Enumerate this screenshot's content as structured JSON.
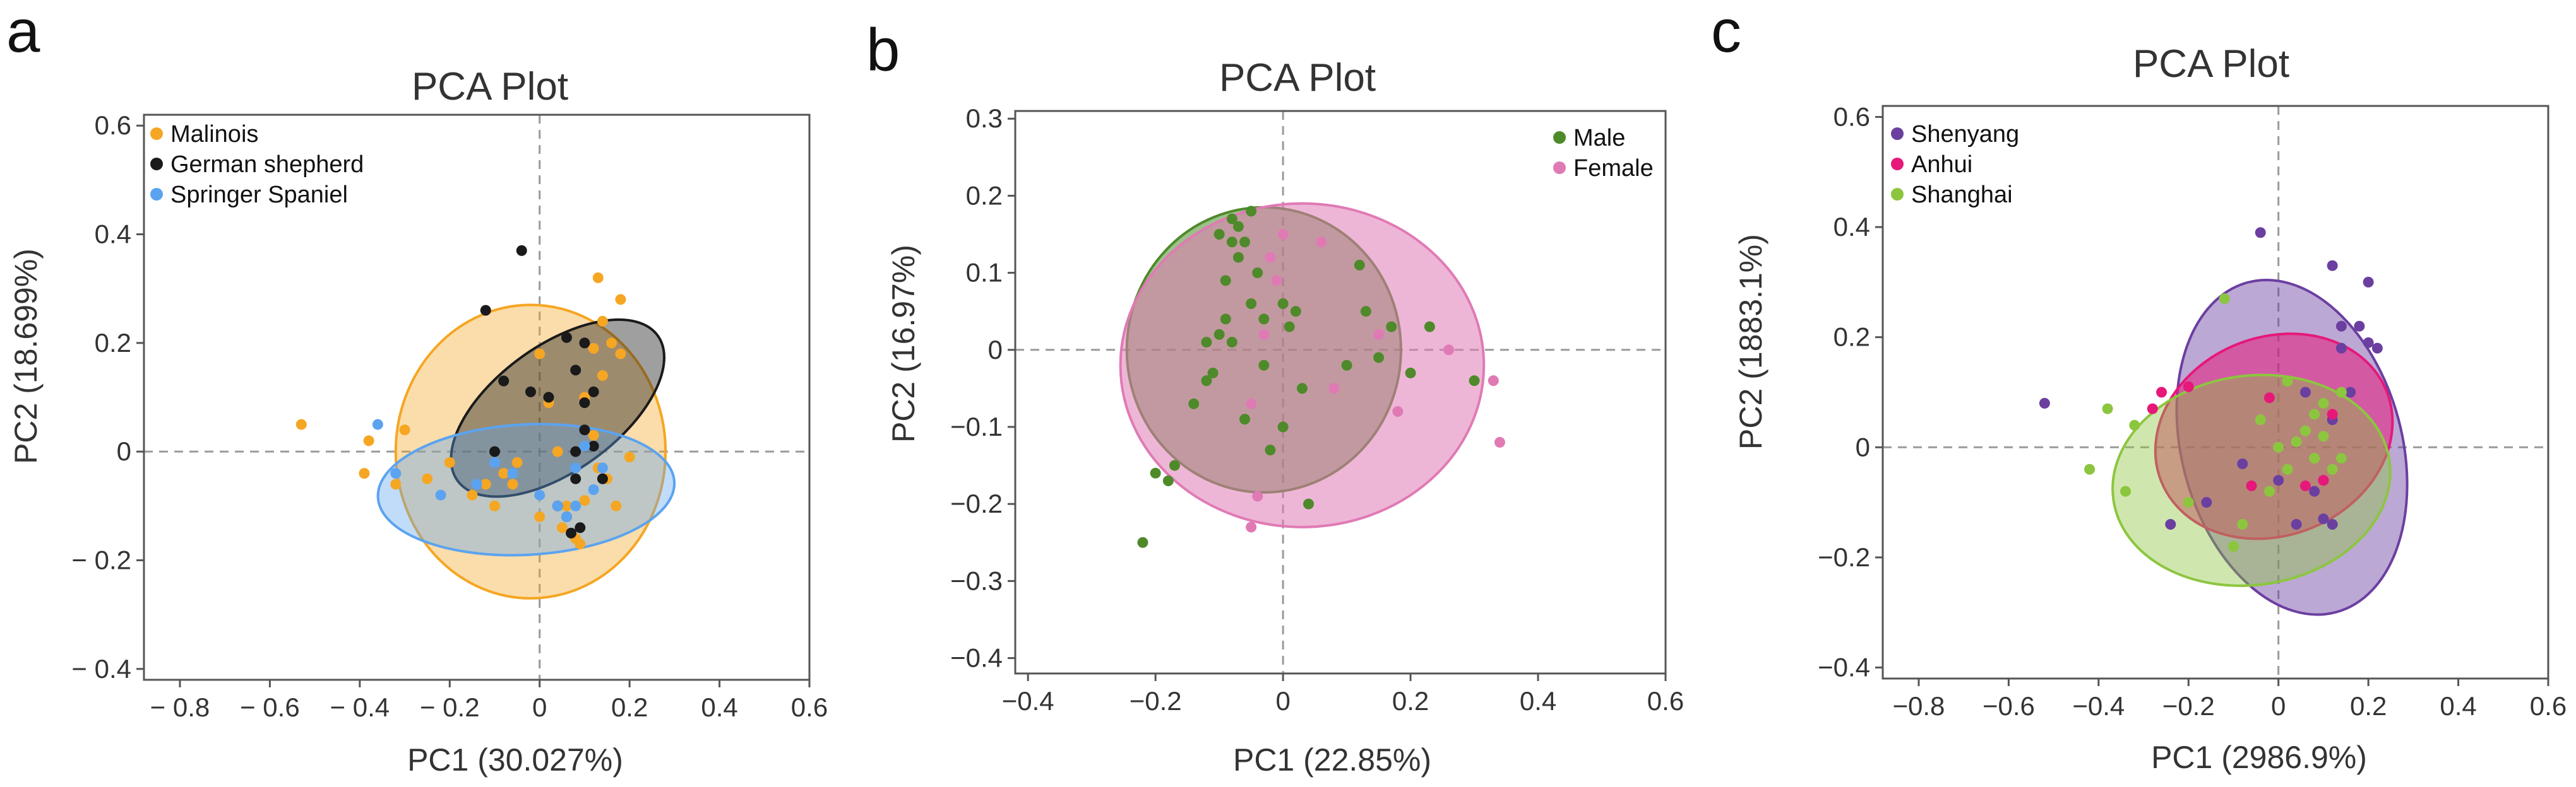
{
  "chart_data": [
    {
      "type": "scatter",
      "panel": "a",
      "title": "PCA  Plot",
      "xlabel": "PC1  (30.027%)",
      "ylabel": "PC2  (18.699%)",
      "xlim": [
        -0.88,
        0.6
      ],
      "ylim": [
        -0.42,
        0.62
      ],
      "xticks": [
        -0.8,
        -0.6,
        -0.4,
        -0.2,
        0,
        0.2,
        0.4,
        0.6
      ],
      "xtick_labels": [
        "− 0.8",
        "− 0.6",
        "− 0.4",
        "− 0.2",
        "0",
        "0.2",
        "0.4",
        "0.6"
      ],
      "yticks": [
        -0.4,
        -0.2,
        0,
        0.2,
        0.4,
        0.6
      ],
      "ytick_labels": [
        "− 0.4",
        "− 0.2",
        "0",
        "0.2",
        "0.4",
        "0.6"
      ],
      "legend_position": "top-left",
      "series": [
        {
          "name": "Malinois",
          "color": "#f5a623",
          "fill_opacity": 0.38,
          "ellipse": {
            "cx": -0.02,
            "cy": 0.0,
            "rx": 0.3,
            "ry": 0.27,
            "angle": 0
          },
          "points": [
            [
              -0.53,
              0.05
            ],
            [
              -0.39,
              -0.04
            ],
            [
              -0.38,
              0.02
            ],
            [
              -0.3,
              0.04
            ],
            [
              -0.2,
              -0.02
            ],
            [
              -0.15,
              -0.08
            ],
            [
              -0.12,
              -0.06
            ],
            [
              -0.08,
              -0.04
            ],
            [
              -0.06,
              -0.06
            ],
            [
              0.0,
              0.18
            ],
            [
              0.02,
              0.09
            ],
            [
              0.04,
              0.0
            ],
            [
              0.05,
              -0.14
            ],
            [
              0.06,
              -0.1
            ],
            [
              0.08,
              -0.16
            ],
            [
              0.09,
              -0.17
            ],
            [
              0.1,
              -0.09
            ],
            [
              0.12,
              0.03
            ],
            [
              0.12,
              0.19
            ],
            [
              0.13,
              0.32
            ],
            [
              0.14,
              0.24
            ],
            [
              0.15,
              -0.05
            ],
            [
              0.16,
              0.2
            ],
            [
              0.18,
              0.28
            ],
            [
              0.18,
              0.18
            ],
            [
              0.2,
              -0.01
            ],
            [
              0.13,
              -0.03
            ],
            [
              0.1,
              0.1
            ],
            [
              -0.25,
              -0.05
            ],
            [
              -0.1,
              -0.1
            ],
            [
              0.0,
              -0.12
            ],
            [
              -0.05,
              -0.02
            ],
            [
              0.14,
              0.14
            ],
            [
              0.17,
              -0.1
            ],
            [
              -0.32,
              -0.06
            ]
          ]
        },
        {
          "name": "German shepherd",
          "color": "#1a1a1a",
          "fill_opacity": 0.42,
          "ellipse": {
            "cx": 0.04,
            "cy": 0.08,
            "rx": 0.275,
            "ry": 0.115,
            "angle": -36
          },
          "points": [
            [
              -0.04,
              0.37
            ],
            [
              -0.12,
              0.26
            ],
            [
              -0.1,
              0.0
            ],
            [
              -0.08,
              0.13
            ],
            [
              -0.02,
              0.11
            ],
            [
              0.02,
              0.1
            ],
            [
              0.06,
              0.21
            ],
            [
              0.08,
              0.15
            ],
            [
              0.1,
              0.09
            ],
            [
              0.1,
              0.04
            ],
            [
              0.12,
              0.01
            ],
            [
              0.08,
              -0.05
            ],
            [
              0.06,
              -0.12
            ],
            [
              0.07,
              -0.15
            ],
            [
              0.09,
              -0.14
            ],
            [
              0.12,
              0.11
            ],
            [
              0.1,
              0.2
            ],
            [
              0.14,
              -0.05
            ],
            [
              0.04,
              -0.1
            ],
            [
              0.08,
              0.0
            ]
          ]
        },
        {
          "name": "Springer Spaniel",
          "color": "#5ba3f0",
          "fill_opacity": 0.38,
          "ellipse": {
            "cx": -0.03,
            "cy": -0.07,
            "rx": 0.33,
            "ry": 0.12,
            "angle": -3
          },
          "points": [
            [
              -0.36,
              0.05
            ],
            [
              -0.32,
              -0.04
            ],
            [
              -0.22,
              -0.08
            ],
            [
              -0.14,
              -0.06
            ],
            [
              -0.06,
              -0.04
            ],
            [
              0.0,
              -0.08
            ],
            [
              0.04,
              -0.1
            ],
            [
              0.08,
              -0.1
            ],
            [
              0.08,
              -0.03
            ],
            [
              0.1,
              0.01
            ],
            [
              0.12,
              -0.07
            ],
            [
              0.14,
              -0.03
            ],
            [
              -0.1,
              -0.02
            ],
            [
              0.06,
              -0.12
            ]
          ]
        }
      ]
    },
    {
      "type": "scatter",
      "panel": "b",
      "title": "PCA  Plot",
      "xlabel": "PC1  (22.85%)",
      "ylabel": "PC2  (16.97%)",
      "xlim": [
        -0.42,
        0.6
      ],
      "ylim": [
        -0.42,
        0.31
      ],
      "xticks": [
        -0.4,
        -0.2,
        0,
        0.2,
        0.4,
        0.6
      ],
      "xtick_labels": [
        "−0.4",
        "−0.2",
        "0",
        "0.2",
        "0.4",
        "0.6"
      ],
      "yticks": [
        -0.4,
        -0.3,
        -0.2,
        -0.1,
        0,
        0.1,
        0.2,
        0.3
      ],
      "ytick_labels": [
        "−0.4",
        "−0.3",
        "−0.2",
        "−0.1",
        "0",
        "0.1",
        "0.2",
        "0.3"
      ],
      "legend_position": "top-right",
      "series": [
        {
          "name": "Male",
          "color": "#4e8a2a",
          "fill_opacity": 0.55,
          "ellipse": {
            "cx": -0.03,
            "cy": 0.0,
            "rx": 0.215,
            "ry": 0.185,
            "angle": 0
          },
          "points": [
            [
              -0.22,
              -0.25
            ],
            [
              -0.2,
              -0.16
            ],
            [
              -0.18,
              -0.17
            ],
            [
              -0.17,
              -0.15
            ],
            [
              -0.14,
              -0.07
            ],
            [
              -0.12,
              -0.04
            ],
            [
              -0.12,
              0.01
            ],
            [
              -0.11,
              -0.03
            ],
            [
              -0.1,
              0.02
            ],
            [
              -0.09,
              0.09
            ],
            [
              -0.09,
              0.04
            ],
            [
              -0.08,
              0.14
            ],
            [
              -0.08,
              0.01
            ],
            [
              -0.07,
              0.16
            ],
            [
              -0.07,
              0.12
            ],
            [
              -0.06,
              0.14
            ],
            [
              -0.06,
              -0.09
            ],
            [
              -0.05,
              0.06
            ],
            [
              -0.04,
              0.1
            ],
            [
              -0.03,
              -0.02
            ],
            [
              -0.02,
              -0.13
            ],
            [
              0.0,
              -0.1
            ],
            [
              0.0,
              0.06
            ],
            [
              0.01,
              0.03
            ],
            [
              0.02,
              0.05
            ],
            [
              0.03,
              -0.05
            ],
            [
              0.04,
              -0.2
            ],
            [
              -0.03,
              0.04
            ],
            [
              0.12,
              0.11
            ],
            [
              0.13,
              0.05
            ],
            [
              0.15,
              -0.01
            ],
            [
              0.17,
              0.03
            ],
            [
              0.2,
              -0.03
            ],
            [
              0.23,
              0.03
            ],
            [
              0.3,
              -0.04
            ],
            [
              0.1,
              -0.02
            ],
            [
              -0.1,
              0.15
            ],
            [
              -0.05,
              0.18
            ],
            [
              -0.08,
              0.17
            ]
          ]
        },
        {
          "name": "Female",
          "color": "#e07ab5",
          "fill_opacity": 0.55,
          "ellipse": {
            "cx": 0.03,
            "cy": -0.02,
            "rx": 0.285,
            "ry": 0.21,
            "angle": 0
          },
          "points": [
            [
              -0.05,
              -0.23
            ],
            [
              -0.04,
              -0.19
            ],
            [
              -0.05,
              -0.07
            ],
            [
              -0.03,
              0.02
            ],
            [
              -0.02,
              0.12
            ],
            [
              -0.01,
              0.09
            ],
            [
              0.0,
              0.15
            ],
            [
              0.15,
              0.02
            ],
            [
              0.18,
              -0.08
            ],
            [
              0.26,
              0.0
            ],
            [
              0.33,
              -0.04
            ],
            [
              0.34,
              -0.12
            ],
            [
              0.06,
              0.14
            ],
            [
              0.08,
              -0.05
            ]
          ]
        }
      ]
    },
    {
      "type": "scatter",
      "panel": "c",
      "title": "PCA  Plot",
      "xlabel": "PC1  (2986.9%)",
      "ylabel": "PC2  (1883.1%)",
      "xlim": [
        -0.88,
        0.6
      ],
      "ylim": [
        -0.42,
        0.62
      ],
      "xticks": [
        -0.8,
        -0.6,
        -0.4,
        -0.2,
        0,
        0.2,
        0.4,
        0.6
      ],
      "xtick_labels": [
        "−0.8",
        "−0.6",
        "−0.4",
        "−0.2",
        "0",
        "0.2",
        "0.4",
        "0.6"
      ],
      "yticks": [
        -0.4,
        -0.2,
        0,
        0.2,
        0.4,
        0.6
      ],
      "ytick_labels": [
        "−0.4",
        "−0.2",
        "0",
        "0.2",
        "0.4",
        "0.6"
      ],
      "legend_position": "top-left",
      "series": [
        {
          "name": "Shenyang",
          "color": "#6b3fa0",
          "fill_opacity": 0.45,
          "ellipse": {
            "cx": 0.03,
            "cy": 0.0,
            "rx": 0.245,
            "ry": 0.31,
            "angle": -15
          },
          "points": [
            [
              -0.52,
              0.08
            ],
            [
              -0.04,
              0.39
            ],
            [
              0.12,
              0.33
            ],
            [
              0.2,
              0.3
            ],
            [
              0.2,
              0.19
            ],
            [
              0.18,
              0.22
            ],
            [
              0.14,
              0.18
            ],
            [
              0.16,
              0.1
            ],
            [
              0.12,
              0.05
            ],
            [
              0.14,
              -0.02
            ],
            [
              0.08,
              -0.08
            ],
            [
              0.1,
              -0.13
            ],
            [
              0.12,
              -0.14
            ],
            [
              0.0,
              -0.06
            ],
            [
              -0.08,
              -0.03
            ],
            [
              -0.24,
              -0.14
            ],
            [
              -0.16,
              -0.1
            ],
            [
              0.04,
              -0.14
            ],
            [
              0.06,
              0.1
            ],
            [
              0.1,
              -0.06
            ],
            [
              0.14,
              0.22
            ],
            [
              0.22,
              0.18
            ]
          ]
        },
        {
          "name": "Anhui",
          "color": "#e6187a",
          "fill_opacity": 0.55,
          "ellipse": {
            "cx": -0.01,
            "cy": 0.02,
            "rx": 0.27,
            "ry": 0.18,
            "angle": -22
          },
          "points": [
            [
              -0.28,
              0.07
            ],
            [
              -0.26,
              0.1
            ],
            [
              -0.2,
              0.11
            ],
            [
              -0.02,
              0.09
            ],
            [
              0.06,
              -0.07
            ],
            [
              0.1,
              -0.06
            ],
            [
              0.12,
              0.06
            ],
            [
              -0.06,
              -0.07
            ]
          ]
        },
        {
          "name": "Shanghai",
          "color": "#8cc63f",
          "fill_opacity": 0.42,
          "ellipse": {
            "cx": -0.06,
            "cy": -0.06,
            "rx": 0.31,
            "ry": 0.19,
            "angle": -8
          },
          "points": [
            [
              -0.38,
              0.07
            ],
            [
              -0.32,
              0.04
            ],
            [
              -0.42,
              -0.04
            ],
            [
              -0.34,
              -0.08
            ],
            [
              -0.2,
              -0.1
            ],
            [
              -0.1,
              -0.18
            ],
            [
              -0.08,
              -0.14
            ],
            [
              -0.04,
              0.05
            ],
            [
              0.0,
              0.0
            ],
            [
              0.02,
              -0.04
            ],
            [
              0.04,
              0.01
            ],
            [
              0.06,
              0.03
            ],
            [
              0.08,
              0.06
            ],
            [
              0.1,
              0.02
            ],
            [
              0.12,
              -0.04
            ],
            [
              0.14,
              -0.02
            ],
            [
              0.14,
              0.1
            ],
            [
              -0.12,
              0.27
            ],
            [
              0.02,
              0.12
            ],
            [
              0.1,
              0.08
            ],
            [
              0.08,
              -0.02
            ],
            [
              -0.02,
              -0.08
            ]
          ]
        }
      ]
    }
  ]
}
